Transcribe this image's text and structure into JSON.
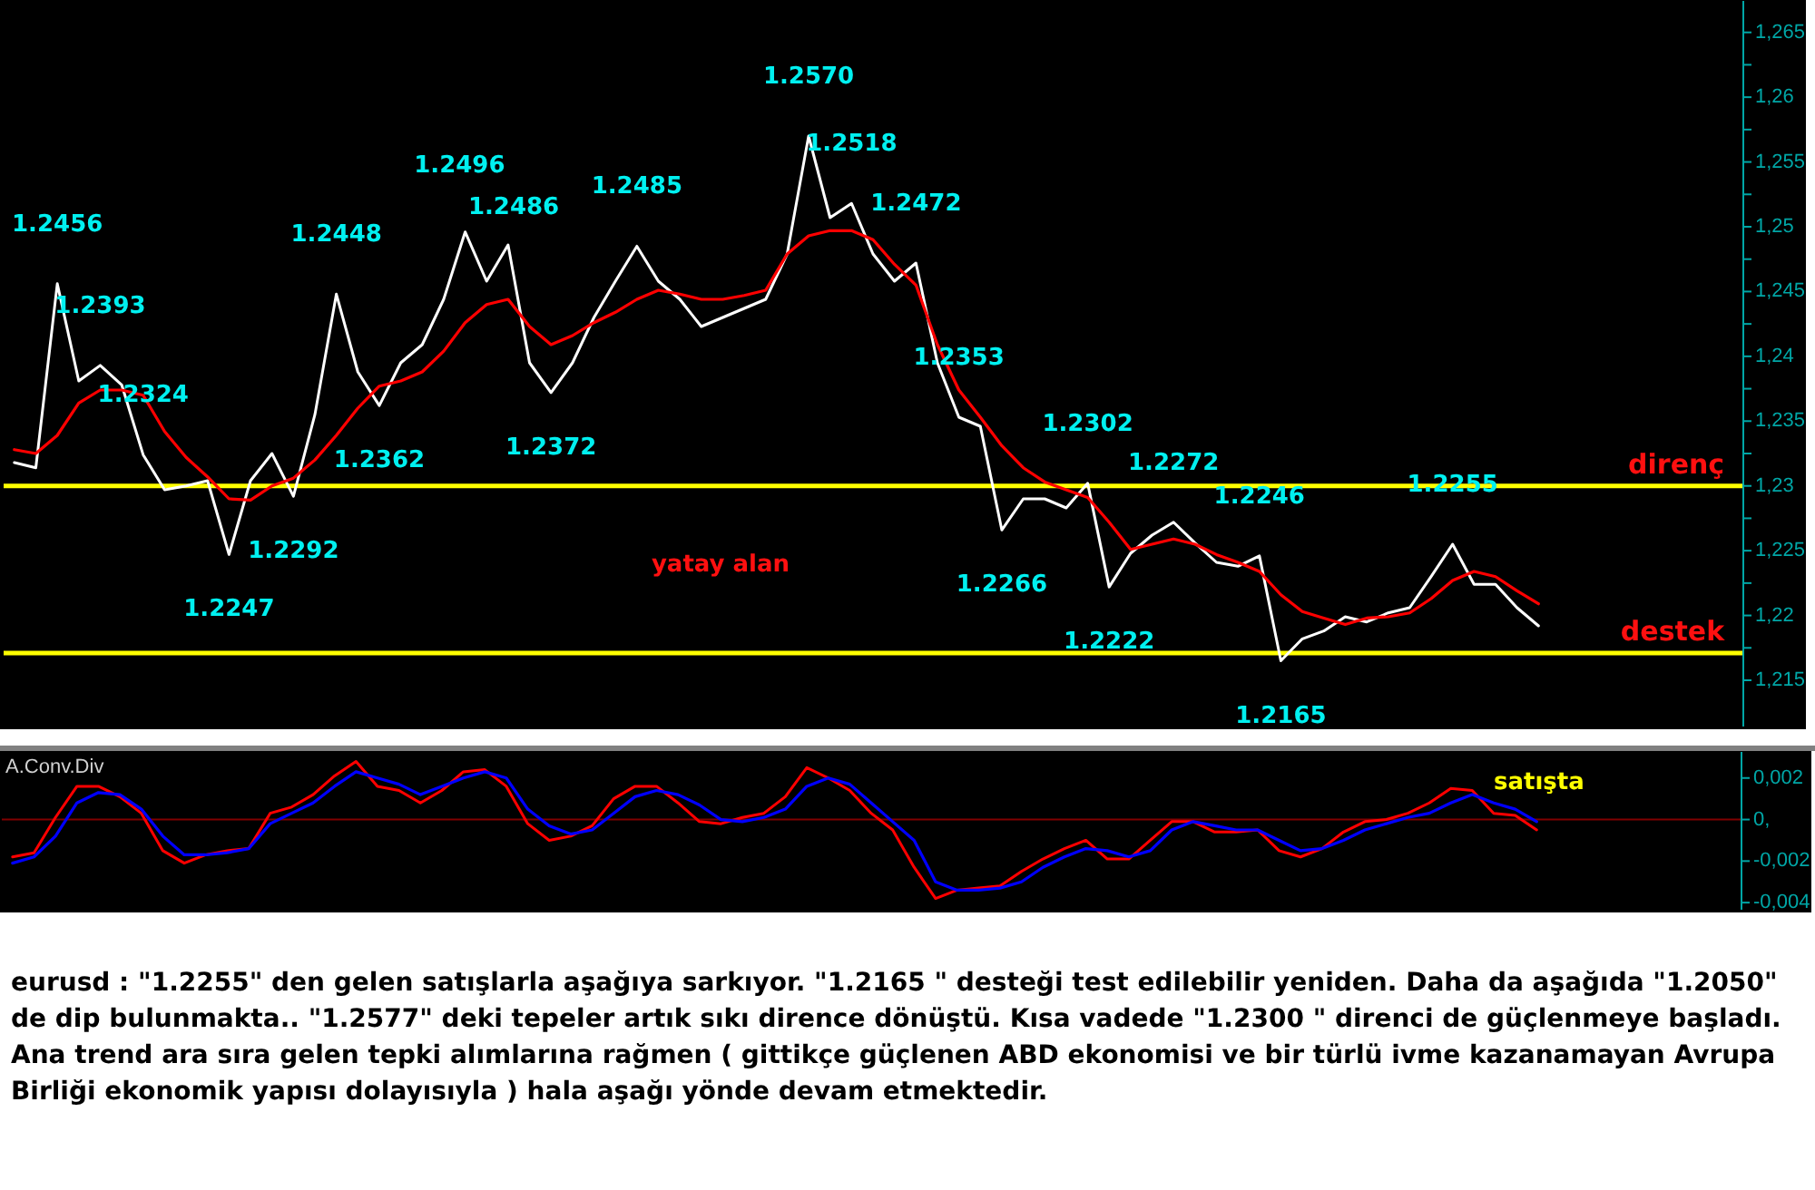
{
  "chart_data": [
    {
      "type": "line",
      "categories": [
        null,
        null,
        null,
        null,
        null,
        null,
        null,
        null,
        null,
        null,
        null,
        null,
        null,
        null,
        null,
        null,
        null,
        null,
        null,
        null,
        null,
        null,
        null,
        null,
        null,
        null,
        null,
        null,
        null,
        null,
        null,
        null,
        null,
        null,
        null,
        null,
        null,
        null,
        null,
        null,
        null,
        null,
        null,
        null,
        null,
        null,
        null,
        null,
        null,
        null,
        null,
        null,
        null,
        null,
        null,
        null,
        null,
        null,
        null,
        null,
        null,
        null,
        null,
        null,
        null,
        null,
        null,
        null,
        null,
        null,
        null,
        null,
        null,
        null,
        null,
        null,
        null,
        null,
        null,
        null,
        null
      ],
      "series": [
        {
          "color": "#ffffff",
          "values": [
            1.2318,
            1.2314,
            1.2456,
            1.2381,
            1.2393,
            1.2378,
            1.2324,
            1.2297,
            1.23,
            1.2304,
            1.2247,
            1.2304,
            1.2325,
            1.2292,
            1.2355,
            1.2448,
            1.2388,
            1.2362,
            1.2395,
            1.2409,
            1.2444,
            1.2496,
            1.2458,
            1.2486,
            1.2395,
            1.2372,
            1.2395,
            1.243,
            1.2458,
            1.2485,
            1.2458,
            1.2444,
            1.2423,
            1.243,
            1.2437,
            1.2444,
            1.2479,
            1.257,
            1.2507,
            1.2518,
            1.2479,
            1.2458,
            1.2472,
            1.2395,
            1.2353,
            1.2346,
            1.2266,
            1.229,
            1.229,
            1.2283,
            1.2302,
            1.2222,
            1.2248,
            1.2262,
            1.2272,
            1.2256,
            1.2241,
            1.2238,
            1.2246,
            1.2165,
            1.2182,
            1.2188,
            1.2199,
            1.2195,
            1.2202,
            1.2206,
            1.223,
            1.2255,
            1.2224,
            1.2224,
            1.2206,
            1.2192,
            null,
            null,
            null,
            null,
            null,
            null,
            null,
            null,
            null
          ]
        },
        {
          "color": "#ff0000",
          "values": [
            1.2328,
            1.2325,
            1.2339,
            1.2364,
            1.2374,
            1.2374,
            1.237,
            1.2342,
            1.2322,
            1.2307,
            1.229,
            1.2289,
            1.23,
            1.2306,
            1.232,
            1.2339,
            1.236,
            1.2377,
            1.2381,
            1.2388,
            1.2404,
            1.2426,
            1.244,
            1.2444,
            1.2423,
            1.2409,
            1.2416,
            1.2426,
            1.2434,
            1.2444,
            1.2451,
            1.2448,
            1.2444,
            1.2444,
            1.2447,
            1.2451,
            1.2479,
            1.2493,
            1.2497,
            1.2497,
            1.249,
            1.2471,
            1.2455,
            1.2409,
            1.2374,
            1.2353,
            1.2331,
            1.2314,
            1.2303,
            1.2297,
            1.2291,
            1.2272,
            1.2251,
            1.2255,
            1.2259,
            1.2255,
            1.2247,
            1.2241,
            1.2234,
            1.2216,
            1.2203,
            1.2198,
            1.2193,
            1.2198,
            1.2199,
            1.2202,
            1.2213,
            1.2227,
            1.2234,
            1.223,
            1.2219,
            1.2209,
            null,
            null,
            null,
            null,
            null,
            null,
            null,
            null,
            null
          ]
        }
      ],
      "ylim": [
        1.2115,
        1.2675
      ],
      "yticks": [
        {
          "value": 1.215,
          "label": "1,215"
        },
        {
          "value": 1.2175,
          "label": null
        },
        {
          "value": 1.22,
          "label": "1,22"
        },
        {
          "value": 1.2225,
          "label": null
        },
        {
          "value": 1.225,
          "label": "1,225"
        },
        {
          "value": 1.2275,
          "label": null
        },
        {
          "value": 1.23,
          "label": "1,23"
        },
        {
          "value": 1.2325,
          "label": null
        },
        {
          "value": 1.235,
          "label": "1,235"
        },
        {
          "value": 1.2375,
          "label": null
        },
        {
          "value": 1.24,
          "label": "1,24"
        },
        {
          "value": 1.2425,
          "label": null
        },
        {
          "value": 1.245,
          "label": "1,245"
        },
        {
          "value": 1.2475,
          "label": null
        },
        {
          "value": 1.25,
          "label": "1,25"
        },
        {
          "value": 1.2525,
          "label": null
        },
        {
          "value": 1.255,
          "label": "1,255"
        },
        {
          "value": 1.2575,
          "label": null
        },
        {
          "value": 1.26,
          "label": "1,26"
        },
        {
          "value": 1.2625,
          "label": null
        },
        {
          "value": 1.265,
          "label": "1,265"
        }
      ],
      "ref_lines": [
        {
          "axis": "y",
          "value": 1.23,
          "label": "direnç",
          "color": "#ffff00"
        },
        {
          "axis": "y",
          "value": 1.2171,
          "label": "destek",
          "color": "#ffff00"
        }
      ],
      "annotations": [
        {
          "text": "1.2456",
          "y": 1.2456
        },
        {
          "text": "1.2393",
          "y": 1.2393
        },
        {
          "text": "1.2324",
          "y": 1.2324
        },
        {
          "text": "1.2247",
          "y": 1.2247
        },
        {
          "text": "1.2292",
          "y": 1.2292
        },
        {
          "text": "1.2448",
          "y": 1.2448
        },
        {
          "text": "1.2362",
          "y": 1.2362
        },
        {
          "text": "1.2496",
          "y": 1.2496
        },
        {
          "text": "1.2486",
          "y": 1.2486
        },
        {
          "text": "1.2372",
          "y": 1.2372
        },
        {
          "text": "1.2485",
          "y": 1.2485
        },
        {
          "text": "1.2570",
          "y": 1.257
        },
        {
          "text": "1.2518",
          "y": 1.2518
        },
        {
          "text": "1.2472",
          "y": 1.2472
        },
        {
          "text": "1.2353",
          "y": 1.2353
        },
        {
          "text": "1.2266",
          "y": 1.2266
        },
        {
          "text": "1.2302",
          "y": 1.2302
        },
        {
          "text": "1.2222",
          "y": 1.2222
        },
        {
          "text": "1.2272",
          "y": 1.2272
        },
        {
          "text": "1.2246",
          "y": 1.2246
        },
        {
          "text": "1.2165",
          "y": 1.2165
        },
        {
          "text": "1.2255",
          "y": 1.2255
        },
        "yatay  alan"
      ],
      "tick_labels": "y"
    },
    {
      "type": "line",
      "title": "A.Conv.Div",
      "categories": [
        null,
        null,
        null,
        null,
        null,
        null,
        null,
        null,
        null,
        null,
        null,
        null,
        null,
        null,
        null,
        null,
        null,
        null,
        null,
        null,
        null,
        null,
        null,
        null,
        null,
        null,
        null,
        null,
        null,
        null,
        null,
        null,
        null,
        null,
        null,
        null,
        null,
        null,
        null,
        null,
        null,
        null,
        null,
        null,
        null,
        null,
        null,
        null,
        null,
        null,
        null,
        null,
        null,
        null,
        null,
        null,
        null,
        null,
        null,
        null,
        null,
        null,
        null,
        null,
        null,
        null,
        null,
        null,
        null,
        null,
        null,
        null,
        null,
        null,
        null,
        null,
        null,
        null,
        null,
        null,
        null
      ],
      "series": [
        {
          "color": "#ff0000",
          "values": [
            -0.0018,
            -0.0016,
            0.0001,
            0.0016,
            0.0016,
            0.0011,
            0.0003,
            -0.0015,
            -0.0021,
            -0.0017,
            -0.0015,
            -0.0014,
            0.0003,
            0.0006,
            0.0012,
            0.0021,
            0.0028,
            0.0016,
            0.0014,
            0.0008,
            0.0014,
            0.0023,
            0.0024,
            0.0016,
            -0.0002,
            -0.001,
            -0.0008,
            -0.0003,
            0.001,
            0.0016,
            0.0016,
            0.0008,
            -0.0001,
            -0.0002,
            0.0001,
            0.0003,
            0.0011,
            0.0025,
            0.002,
            0.0014,
            0.0003,
            -0.0005,
            -0.0023,
            -0.0038,
            -0.0034,
            -0.0033,
            -0.0032,
            -0.0025,
            -0.0019,
            -0.0014,
            -0.001,
            -0.0019,
            -0.0019,
            -0.001,
            -0.0001,
            -0.0001,
            -0.0006,
            -0.0006,
            -0.0005,
            -0.0015,
            -0.0018,
            -0.0014,
            -0.0006,
            -0.0001,
            0.0,
            0.0003,
            0.0008,
            0.0015,
            0.0014,
            0.0003,
            0.0002,
            -0.0005,
            null,
            null,
            null,
            null,
            null,
            null,
            null,
            null,
            null
          ]
        },
        {
          "color": "#0000ff",
          "values": [
            -0.0021,
            -0.0018,
            -0.0008,
            0.0008,
            0.0013,
            0.0012,
            0.0005,
            -0.0008,
            -0.0017,
            -0.0017,
            -0.0016,
            -0.0014,
            -0.0002,
            0.0003,
            0.0008,
            0.0016,
            0.0023,
            0.002,
            0.0017,
            0.0012,
            0.0016,
            0.002,
            0.0023,
            0.002,
            0.0005,
            -0.0003,
            -0.0007,
            -0.0005,
            0.0003,
            0.0011,
            0.0014,
            0.0012,
            0.0007,
            0.0,
            -0.0001,
            0.0001,
            0.0005,
            0.0016,
            0.002,
            0.0017,
            0.0008,
            -0.0001,
            -0.001,
            -0.003,
            -0.0034,
            -0.0034,
            -0.0033,
            -0.003,
            -0.0023,
            -0.0018,
            -0.0014,
            -0.0015,
            -0.0018,
            -0.0015,
            -0.0005,
            -0.0001,
            -0.0003,
            -0.0005,
            -0.0005,
            -0.001,
            -0.0015,
            -0.0014,
            -0.001,
            -0.0005,
            -0.0002,
            0.0001,
            0.0003,
            0.0008,
            0.0012,
            0.0008,
            0.0005,
            -0.0001,
            null,
            null,
            null,
            null,
            null,
            null,
            null,
            null,
            null
          ]
        }
      ],
      "ylim": [
        -0.0043,
        0.0033
      ],
      "yticks": [
        {
          "value": 0.002,
          "label": "0,002"
        },
        {
          "value": 0,
          "label": "0,"
        },
        {
          "value": -0.002,
          "label": "-0,002"
        },
        {
          "value": -0.004,
          "label": "-0,004"
        }
      ],
      "ref_lines": [
        {
          "axis": "y",
          "value": 0,
          "color": "#800000"
        }
      ],
      "annotations": [
        "satışta",
        "eurusd : \"1.2255\" den gelen satışlarla aşağıya sarkıyor. \"1.2165 \" desteği test edilebilir yeniden. Daha da aşağıda \"1.2050\" de dip bulunmakta.. \"1.2577\" deki tepeler artık sıkı dirence dönüştü. Kısa vadede \"1.2300 \" direnci de güçlenmeye başladı. Ana trend ara sıra gelen tepki alımlarına rağmen ( gittikçe güçlenen ABD ekonomisi ve bir türlü ivme kazanamayan Avrupa Birliği ekonomik yapısı dolayısıyla ) hala aşağı yönde devam etmektedir."
      ],
      "tick_labels": "y"
    }
  ]
}
